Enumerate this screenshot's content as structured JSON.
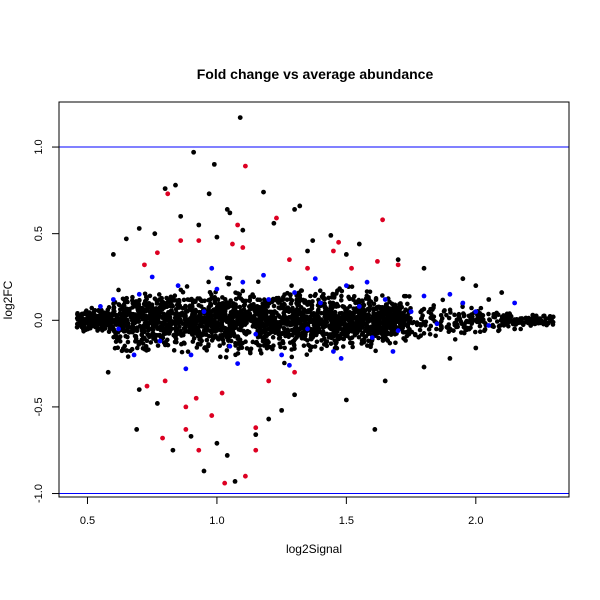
{
  "chart_data": {
    "type": "scatter",
    "title": "Fold change vs average abundance",
    "xlabel": "log2Signal",
    "ylabel": "log2FC",
    "xlim": [
      0.39,
      2.36
    ],
    "ylim": [
      -1.02,
      1.26
    ],
    "x_ticks": [
      0.5,
      1.0,
      1.5,
      2.0
    ],
    "x_tick_labels": [
      "0.5",
      "1.0",
      "1.5",
      "2.0"
    ],
    "y_ticks": [
      -1.0,
      -0.5,
      0.0,
      0.5,
      1.0
    ],
    "y_tick_labels": [
      "-1.0",
      "-0.5",
      "0.0",
      "0.5",
      "1.0"
    ],
    "reference_lines": [
      1.0,
      -1.0
    ],
    "reference_line_color": "#0000ff",
    "series": [
      {
        "color": "#000000",
        "points": [
          [
            1.09,
            1.17
          ],
          [
            0.91,
            0.97
          ],
          [
            0.99,
            0.9
          ],
          [
            0.8,
            0.76
          ],
          [
            0.84,
            0.78
          ],
          [
            1.18,
            0.74
          ],
          [
            0.97,
            0.73
          ],
          [
            1.04,
            0.64
          ],
          [
            1.05,
            0.62
          ],
          [
            1.3,
            0.64
          ],
          [
            1.32,
            0.66
          ],
          [
            0.86,
            0.6
          ],
          [
            0.93,
            0.55
          ],
          [
            1.22,
            0.56
          ],
          [
            1.1,
            0.52
          ],
          [
            0.7,
            0.53
          ],
          [
            0.76,
            0.5
          ],
          [
            1.0,
            0.48
          ],
          [
            1.44,
            0.49
          ],
          [
            0.65,
            0.47
          ],
          [
            1.37,
            0.46
          ],
          [
            1.55,
            0.44
          ],
          [
            1.5,
            0.38
          ],
          [
            1.35,
            0.4
          ],
          [
            0.6,
            0.38
          ],
          [
            1.7,
            0.35
          ],
          [
            1.8,
            0.3
          ],
          [
            1.95,
            0.24
          ],
          [
            2.0,
            0.2
          ],
          [
            2.1,
            0.16
          ],
          [
            0.69,
            -0.63
          ],
          [
            0.83,
            -0.75
          ],
          [
            0.95,
            -0.87
          ],
          [
            1.04,
            -0.78
          ],
          [
            1.0,
            -0.71
          ],
          [
            1.61,
            -0.63
          ],
          [
            0.9,
            -0.67
          ],
          [
            1.15,
            -0.66
          ],
          [
            1.25,
            -0.52
          ],
          [
            1.2,
            -0.57
          ],
          [
            0.77,
            -0.48
          ],
          [
            1.5,
            -0.46
          ],
          [
            0.7,
            -0.4
          ],
          [
            1.3,
            -0.43
          ],
          [
            1.65,
            -0.35
          ],
          [
            1.8,
            -0.27
          ],
          [
            1.9,
            -0.22
          ],
          [
            2.0,
            -0.16
          ],
          [
            0.58,
            -0.3
          ],
          [
            2.22,
            0.03
          ],
          [
            2.27,
            0.01
          ],
          [
            2.15,
            -0.05
          ],
          [
            2.05,
            0.12
          ],
          [
            0.47,
            0.02
          ],
          [
            0.46,
            -0.04
          ],
          [
            1.07,
            -0.93
          ]
        ]
      },
      {
        "color": "#0000ff",
        "points": [
          [
            0.55,
            0.08
          ],
          [
            0.62,
            -0.05
          ],
          [
            0.7,
            0.15
          ],
          [
            0.78,
            -0.12
          ],
          [
            0.85,
            0.2
          ],
          [
            0.9,
            -0.2
          ],
          [
            0.95,
            0.05
          ],
          [
            1.0,
            0.18
          ],
          [
            1.05,
            -0.15
          ],
          [
            1.1,
            0.22
          ],
          [
            1.15,
            -0.08
          ],
          [
            1.2,
            0.12
          ],
          [
            1.25,
            -0.2
          ],
          [
            1.3,
            0.16
          ],
          [
            1.35,
            -0.05
          ],
          [
            1.4,
            0.1
          ],
          [
            1.45,
            -0.18
          ],
          [
            1.5,
            0.2
          ],
          [
            1.55,
            0.08
          ],
          [
            1.6,
            -0.1
          ],
          [
            1.65,
            0.12
          ],
          [
            1.7,
            -0.06
          ],
          [
            1.75,
            0.05
          ],
          [
            1.8,
            0.14
          ],
          [
            1.85,
            -0.02
          ],
          [
            1.9,
            0.15
          ],
          [
            1.95,
            0.1
          ],
          [
            2.0,
            0.05
          ],
          [
            2.05,
            -0.03
          ],
          [
            2.15,
            0.1
          ],
          [
            0.6,
            0.12
          ],
          [
            0.68,
            -0.2
          ],
          [
            0.75,
            0.25
          ],
          [
            0.88,
            -0.28
          ],
          [
            0.98,
            0.3
          ],
          [
            1.08,
            -0.25
          ],
          [
            1.18,
            0.26
          ],
          [
            1.28,
            -0.26
          ],
          [
            1.38,
            0.24
          ],
          [
            1.48,
            -0.22
          ],
          [
            1.58,
            0.22
          ],
          [
            1.68,
            -0.18
          ]
        ]
      },
      {
        "color": "#dd0022",
        "points": [
          [
            1.11,
            0.89
          ],
          [
            0.81,
            0.73
          ],
          [
            1.08,
            0.55
          ],
          [
            1.23,
            0.59
          ],
          [
            1.64,
            0.58
          ],
          [
            0.86,
            0.46
          ],
          [
            0.93,
            0.46
          ],
          [
            1.1,
            0.42
          ],
          [
            1.47,
            0.45
          ],
          [
            1.45,
            0.4
          ],
          [
            1.06,
            0.44
          ],
          [
            0.77,
            0.39
          ],
          [
            1.62,
            0.34
          ],
          [
            1.7,
            0.32
          ],
          [
            1.28,
            0.35
          ],
          [
            1.35,
            0.3
          ],
          [
            0.72,
            0.32
          ],
          [
            1.52,
            0.3
          ],
          [
            0.8,
            -0.35
          ],
          [
            0.88,
            -0.5
          ],
          [
            0.79,
            -0.68
          ],
          [
            0.88,
            -0.63
          ],
          [
            0.93,
            -0.75
          ],
          [
            1.03,
            -0.94
          ],
          [
            1.11,
            -0.9
          ],
          [
            1.15,
            -0.62
          ],
          [
            1.15,
            -0.75
          ],
          [
            0.98,
            -0.55
          ],
          [
            0.92,
            -0.45
          ],
          [
            1.02,
            -0.42
          ],
          [
            0.73,
            -0.38
          ],
          [
            1.2,
            -0.35
          ],
          [
            1.3,
            -0.3
          ]
        ]
      }
    ],
    "bulk_regions": [
      {
        "x_range": [
          0.46,
          2.3
        ],
        "color": "#000000"
      }
    ]
  }
}
